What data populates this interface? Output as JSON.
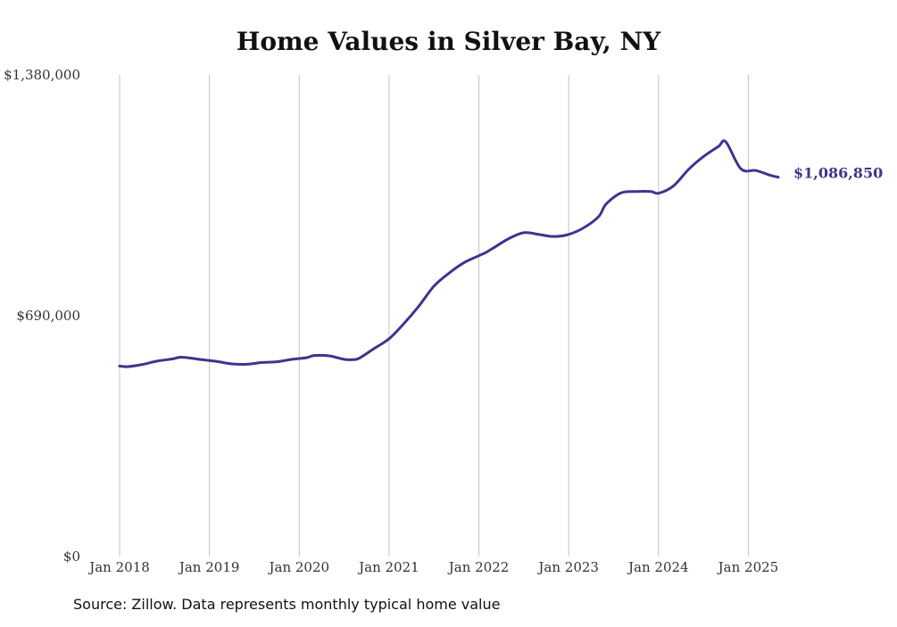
{
  "chart_data": {
    "type": "line",
    "title": "Home Values in Silver Bay, NY",
    "xlabel": "",
    "ylabel": "",
    "ylim": [
      0,
      1380000
    ],
    "xlim": [
      "2018-01",
      "2025-05"
    ],
    "grid": "vertical",
    "y_ticks": [
      {
        "value": 0,
        "label": "$0"
      },
      {
        "value": 690000,
        "label": "$690,000"
      },
      {
        "value": 1380000,
        "label": "$1,380,000"
      }
    ],
    "x_ticks": [
      {
        "value": "2018-01",
        "label": "Jan 2018"
      },
      {
        "value": "2019-01",
        "label": "Jan 2019"
      },
      {
        "value": "2020-01",
        "label": "Jan 2020"
      },
      {
        "value": "2021-01",
        "label": "Jan 2021"
      },
      {
        "value": "2022-01",
        "label": "Jan 2022"
      },
      {
        "value": "2023-01",
        "label": "Jan 2023"
      },
      {
        "value": "2024-01",
        "label": "Jan 2024"
      },
      {
        "value": "2025-01",
        "label": "Jan 2025"
      }
    ],
    "series": [
      {
        "color": "#3d3590",
        "x": [
          "2018-01",
          "2018-02",
          "2018-04",
          "2018-06",
          "2018-08",
          "2018-09",
          "2018-10",
          "2018-12",
          "2019-02",
          "2019-04",
          "2019-06",
          "2019-08",
          "2019-10",
          "2019-12",
          "2020-02",
          "2020-03",
          "2020-05",
          "2020-07",
          "2020-08",
          "2020-09",
          "2020-11",
          "2021-01",
          "2021-03",
          "2021-05",
          "2021-07",
          "2021-09",
          "2021-11",
          "2022-01",
          "2022-02",
          "2022-03",
          "2022-05",
          "2022-07",
          "2022-09",
          "2022-11",
          "2023-01",
          "2023-03",
          "2023-05",
          "2023-06",
          "2023-08",
          "2023-10",
          "2023-12",
          "2024-01",
          "2024-03",
          "2024-05",
          "2024-07",
          "2024-09",
          "2024-10",
          "2024-12",
          "2025-02",
          "2025-04",
          "2025-05"
        ],
        "values": [
          546000,
          544000,
          550000,
          560000,
          566000,
          571000,
          570000,
          564000,
          559000,
          552000,
          551000,
          556000,
          558000,
          565000,
          570000,
          576000,
          575000,
          565000,
          564000,
          568000,
          596000,
          624000,
          668000,
          718000,
          775000,
          812000,
          842000,
          862000,
          872000,
          885000,
          911000,
          928000,
          923000,
          917000,
          923000,
          942000,
          974000,
          1010000,
          1042000,
          1046000,
          1046000,
          1041000,
          1062000,
          1109000,
          1146000,
          1175000,
          1188000,
          1111000,
          1106000,
          1092000,
          1086850
        ]
      }
    ],
    "end_label": "$1,086,850",
    "source_note": "Source: Zillow. Data represents monthly typical home value"
  }
}
